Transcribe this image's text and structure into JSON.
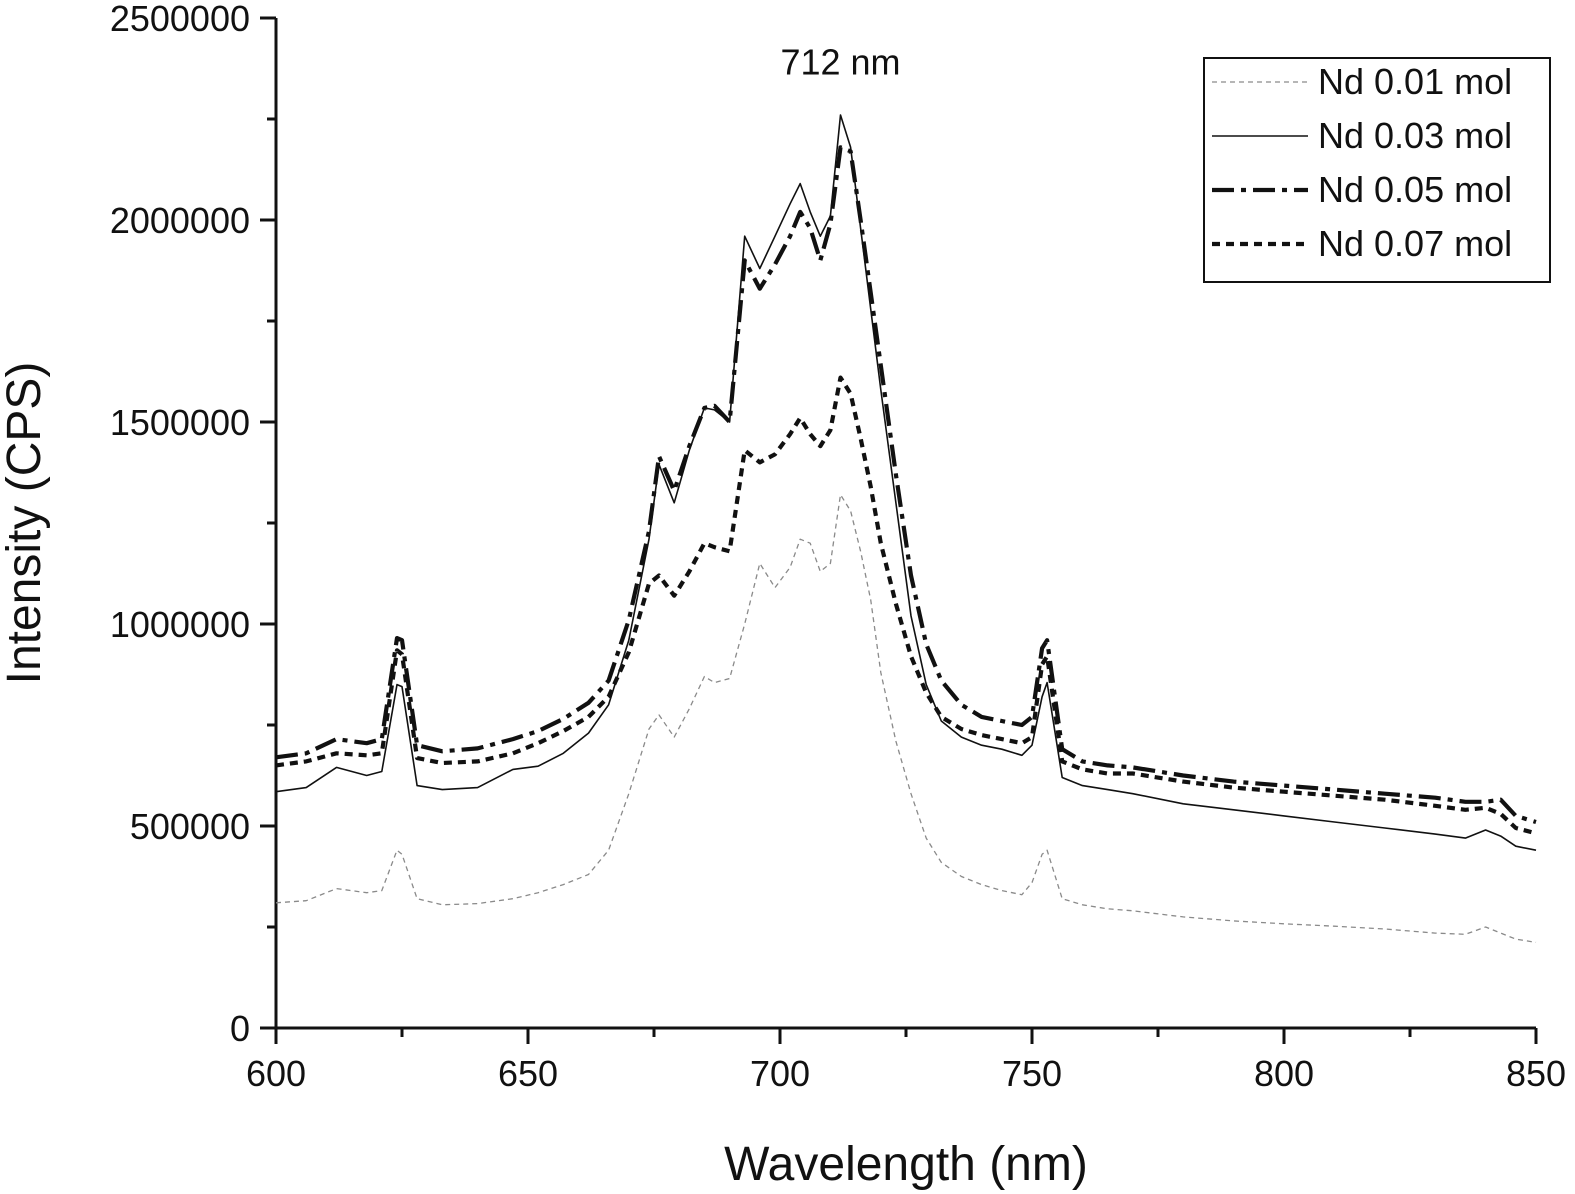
{
  "chart_data": {
    "type": "line",
    "title": "",
    "xlabel": "Wavelength (nm)",
    "ylabel": "Intensity (CPS)",
    "xlim": [
      600,
      850
    ],
    "ylim": [
      0,
      2500000
    ],
    "x_ticks": [
      600,
      650,
      700,
      750,
      800,
      850
    ],
    "y_ticks": [
      0,
      500000,
      1000000,
      1500000,
      2000000,
      2500000
    ],
    "x_tick_labels": [
      "600",
      "650",
      "700",
      "750",
      "800",
      "850"
    ],
    "y_tick_labels": [
      "0",
      "500000",
      "1000000",
      "1500000",
      "2000000",
      "2500000"
    ],
    "grid": false,
    "legend_position": "top-right",
    "annotations": [
      {
        "text": "712 nm",
        "x": 712,
        "y": 2360000
      }
    ],
    "x": [
      600,
      606,
      612,
      618,
      621,
      624,
      625,
      628,
      633,
      640,
      647,
      652,
      657,
      662,
      666,
      670,
      674,
      676,
      679,
      682,
      685,
      687,
      690,
      693,
      696,
      699,
      702,
      704,
      706,
      708,
      710,
      712,
      714,
      716,
      718,
      720,
      723,
      726,
      729,
      732,
      736,
      740,
      744,
      748,
      750,
      752,
      753,
      756,
      760,
      765,
      770,
      780,
      790,
      800,
      810,
      820,
      830,
      836,
      840,
      843,
      846,
      850
    ],
    "series": [
      {
        "name": "Nd 0.01 mol",
        "style": "short-dash-thin",
        "color": "#8a8a8a",
        "values": [
          310000,
          315000,
          345000,
          335000,
          340000,
          440000,
          430000,
          320000,
          305000,
          308000,
          320000,
          335000,
          355000,
          380000,
          440000,
          580000,
          740000,
          775000,
          720000,
          790000,
          870000,
          855000,
          865000,
          1000000,
          1150000,
          1090000,
          1140000,
          1210000,
          1200000,
          1130000,
          1150000,
          1320000,
          1280000,
          1180000,
          1060000,
          880000,
          710000,
          580000,
          470000,
          410000,
          375000,
          355000,
          340000,
          330000,
          360000,
          430000,
          440000,
          320000,
          305000,
          295000,
          290000,
          275000,
          265000,
          258000,
          252000,
          245000,
          235000,
          232000,
          250000,
          235000,
          220000,
          212000
        ]
      },
      {
        "name": "Nd 0.03 mol",
        "style": "solid-thin",
        "color": "#111111",
        "values": [
          585000,
          595000,
          645000,
          625000,
          635000,
          850000,
          845000,
          600000,
          590000,
          595000,
          640000,
          648000,
          680000,
          730000,
          800000,
          960000,
          1210000,
          1395000,
          1300000,
          1430000,
          1535000,
          1530000,
          1500000,
          1960000,
          1880000,
          1960000,
          2040000,
          2090000,
          2020000,
          1960000,
          2010000,
          2260000,
          2180000,
          1980000,
          1780000,
          1580000,
          1300000,
          1020000,
          850000,
          760000,
          720000,
          700000,
          690000,
          675000,
          700000,
          820000,
          855000,
          620000,
          600000,
          590000,
          580000,
          555000,
          540000,
          525000,
          510000,
          495000,
          480000,
          470000,
          490000,
          475000,
          450000,
          440000
        ]
      },
      {
        "name": "Nd 0.05 mol",
        "style": "dash-dot-thick",
        "color": "#111111",
        "values": [
          670000,
          680000,
          715000,
          705000,
          715000,
          965000,
          960000,
          700000,
          685000,
          692000,
          715000,
          735000,
          765000,
          805000,
          860000,
          1010000,
          1230000,
          1415000,
          1330000,
          1440000,
          1535000,
          1540000,
          1500000,
          1900000,
          1830000,
          1890000,
          1960000,
          2020000,
          1980000,
          1900000,
          1990000,
          2180000,
          2170000,
          2000000,
          1820000,
          1640000,
          1370000,
          1120000,
          950000,
          860000,
          800000,
          770000,
          760000,
          750000,
          770000,
          940000,
          960000,
          690000,
          660000,
          650000,
          645000,
          625000,
          610000,
          600000,
          590000,
          580000,
          570000,
          560000,
          560000,
          565000,
          525000,
          510000
        ]
      },
      {
        "name": "Nd 0.07 mol",
        "style": "dotted-thick",
        "color": "#111111",
        "values": [
          650000,
          660000,
          680000,
          675000,
          680000,
          935000,
          925000,
          668000,
          656000,
          660000,
          680000,
          705000,
          735000,
          770000,
          820000,
          930000,
          1100000,
          1120000,
          1070000,
          1130000,
          1200000,
          1190000,
          1180000,
          1430000,
          1400000,
          1420000,
          1470000,
          1510000,
          1470000,
          1440000,
          1480000,
          1610000,
          1570000,
          1460000,
          1340000,
          1200000,
          1050000,
          920000,
          830000,
          770000,
          740000,
          725000,
          715000,
          705000,
          720000,
          900000,
          920000,
          660000,
          640000,
          630000,
          630000,
          610000,
          595000,
          585000,
          575000,
          565000,
          550000,
          540000,
          545000,
          530000,
          495000,
          482000
        ]
      }
    ]
  }
}
